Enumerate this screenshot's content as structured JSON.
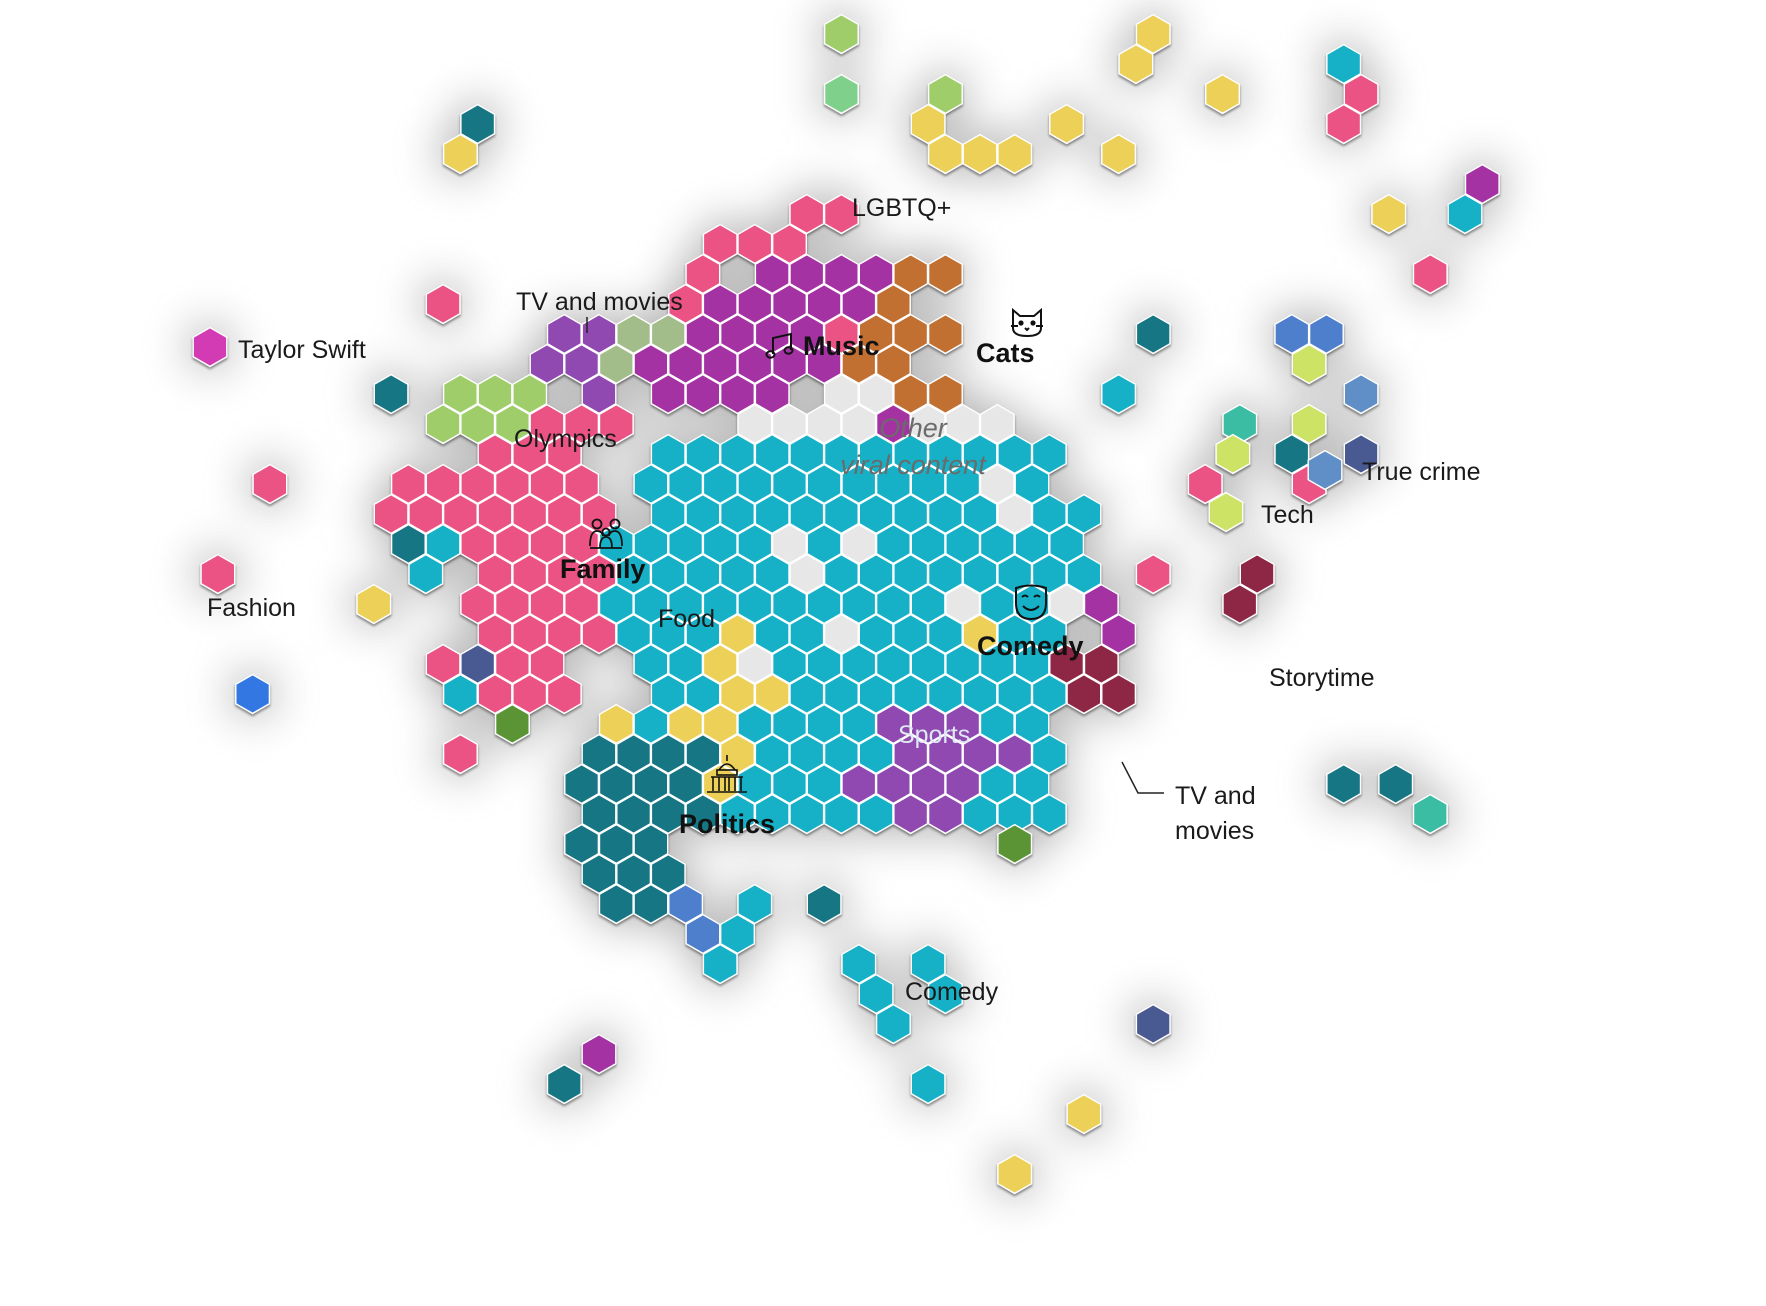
{
  "colors": {
    "family_pink": "#ea5384",
    "comedy_cyan": "#12b1c6",
    "politics_teal": "#147684",
    "music_purple": "#a532a3",
    "tv_purple": "#8f48b1",
    "cats_orange": "#c16f32",
    "food_yellow": "#ecd059",
    "olympics_green": "#9fcd6b",
    "storytime_maroon": "#8e2744",
    "other_gray": "#e7e7e7",
    "magenta": "#d33ab5",
    "sage": "#a3bd8a",
    "tech_lime": "#cde365",
    "true_crime_blue": "#5f8fc6",
    "sports_blue": "#4e7fcd",
    "navy": "#4a5a93",
    "turquoise": "#3bbda3",
    "dark_green": "#5a9436",
    "bright_blue": "#3277e2"
  },
  "labels": {
    "lgbtq": "LGBTQ+",
    "tv_movies_top": "TV and movies",
    "music": "Music",
    "cats": "Cats",
    "taylor_swift": "Taylor Swift",
    "olympics": "Olympics",
    "other_line1": "Other",
    "other_line2": "viral content",
    "true_crime": "True crime",
    "tech": "Tech",
    "family": "Family",
    "fashion": "Fashion",
    "food": "Food",
    "comedy_main": "Comedy",
    "storytime": "Storytime",
    "sports": "Sports",
    "tv_movies_right_1": "TV and",
    "tv_movies_right_2": "movies",
    "politics": "Politics",
    "comedy_small": "Comedy"
  },
  "icons": [
    "music-note-icon",
    "cat-icon",
    "family-icon",
    "theater-mask-icon",
    "capitol-icon"
  ]
}
